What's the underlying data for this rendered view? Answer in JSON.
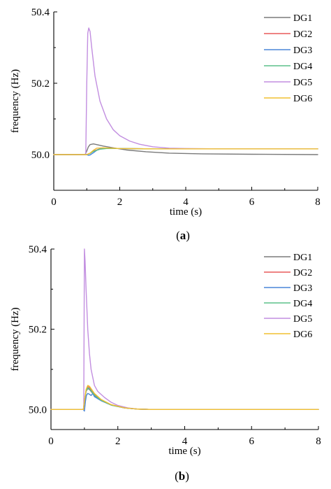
{
  "colors": {
    "DG1": "#7a7a7a",
    "DG2": "#e85a5a",
    "DG3": "#4a86d8",
    "DG4": "#5cc08a",
    "DG5": "#c28ee0",
    "DG6": "#f0c030"
  },
  "chart_data": [
    {
      "type": "line",
      "caption_letter": "a",
      "xlabel": "time (s)",
      "ylabel": "frequency (Hz)",
      "xlim": [
        0,
        8
      ],
      "ylim": [
        49.9,
        50.4
      ],
      "xticks": [
        0,
        2,
        4,
        6,
        8
      ],
      "yticks": [
        50.0,
        50.2,
        50.4
      ],
      "xtick_labels": [
        "0",
        "2",
        "4",
        "6",
        "8"
      ],
      "ytick_labels": [
        "50.0",
        "50.2",
        "50.4"
      ],
      "legend": "top-right",
      "grid": false,
      "series": [
        {
          "name": "DG1",
          "x": [
            0,
            0.95,
            1.0,
            1.05,
            1.1,
            1.2,
            1.3,
            1.5,
            1.8,
            2.2,
            2.8,
            3.5,
            4.5,
            6,
            8
          ],
          "y": [
            50.0,
            50.0,
            50.01,
            50.022,
            50.028,
            50.03,
            50.028,
            50.024,
            50.019,
            50.013,
            50.008,
            50.004,
            50.002,
            50.001,
            50.0
          ]
        },
        {
          "name": "DG2",
          "x": [
            0,
            0.95,
            1.0,
            1.1,
            1.2,
            1.4,
            1.6,
            2.0,
            3,
            8
          ],
          "y": [
            50.0,
            50.0,
            50.0,
            50.004,
            50.01,
            50.016,
            50.018,
            50.017,
            50.016,
            50.016
          ]
        },
        {
          "name": "DG3",
          "x": [
            0,
            0.95,
            1.0,
            1.05,
            1.1,
            1.2,
            1.3,
            1.4,
            1.6,
            2.0,
            3,
            8
          ],
          "y": [
            50.0,
            50.0,
            50.0,
            49.998,
            49.999,
            50.005,
            50.012,
            50.016,
            50.018,
            50.017,
            50.016,
            50.016
          ]
        },
        {
          "name": "DG4",
          "x": [
            0,
            0.95,
            1.0,
            1.1,
            1.2,
            1.4,
            1.6,
            2.0,
            3,
            8
          ],
          "y": [
            50.0,
            50.0,
            50.0,
            50.003,
            50.009,
            50.015,
            50.017,
            50.017,
            50.016,
            50.016
          ]
        },
        {
          "name": "DG5",
          "x": [
            0,
            0.97,
            1.0,
            1.03,
            1.06,
            1.1,
            1.15,
            1.25,
            1.4,
            1.6,
            1.8,
            2.0,
            2.3,
            2.6,
            3.0,
            3.5,
            4.0,
            5,
            6,
            8
          ],
          "y": [
            50.0,
            50.0,
            50.2,
            50.34,
            50.355,
            50.345,
            50.3,
            50.22,
            50.15,
            50.1,
            50.07,
            50.053,
            50.038,
            50.029,
            50.022,
            50.018,
            50.017,
            50.016,
            50.016,
            50.016
          ]
        },
        {
          "name": "DG6",
          "x": [
            0,
            0.95,
            1.0,
            1.1,
            1.2,
            1.3,
            1.5,
            2.0,
            3,
            8
          ],
          "y": [
            50.0,
            50.0,
            50.0,
            50.004,
            50.012,
            50.018,
            50.019,
            50.017,
            50.016,
            50.016
          ]
        }
      ]
    },
    {
      "type": "line",
      "caption_letter": "b",
      "xlabel": "time (s)",
      "ylabel": "frequency (Hz)",
      "xlim": [
        0,
        8
      ],
      "ylim": [
        49.95,
        50.4
      ],
      "xticks": [
        0,
        2,
        4,
        6,
        8
      ],
      "yticks": [
        50.0,
        50.2,
        50.4
      ],
      "xtick_labels": [
        "0",
        "2",
        "4",
        "6",
        "8"
      ],
      "ytick_labels": [
        "50.0",
        "50.2",
        "50.4"
      ],
      "legend": "top-right",
      "grid": false,
      "series": [
        {
          "name": "DG1",
          "x": [
            0,
            0.97,
            1.0,
            1.05,
            1.1,
            1.15,
            1.2,
            1.3,
            1.5,
            1.8,
            2.2,
            2.6,
            3.0,
            8
          ],
          "y": [
            50.0,
            50.0,
            50.02,
            50.045,
            50.052,
            50.05,
            50.045,
            50.035,
            50.022,
            50.011,
            50.004,
            50.001,
            50.0,
            50.0
          ]
        },
        {
          "name": "DG2",
          "x": [
            0,
            0.97,
            1.0,
            1.05,
            1.1,
            1.15,
            1.2,
            1.3,
            1.5,
            1.8,
            2.2,
            2.6,
            3.0,
            8
          ],
          "y": [
            50.0,
            50.0,
            50.02,
            50.048,
            50.057,
            50.055,
            50.05,
            50.038,
            50.024,
            50.012,
            50.004,
            50.001,
            50.0,
            50.0
          ]
        },
        {
          "name": "DG3",
          "x": [
            0,
            0.97,
            1.0,
            1.03,
            1.06,
            1.1,
            1.15,
            1.2,
            1.25,
            1.3,
            1.5,
            1.8,
            2.2,
            2.6,
            3.0,
            8
          ],
          "y": [
            50.0,
            50.0,
            49.996,
            50.02,
            50.035,
            50.04,
            50.038,
            50.035,
            50.04,
            50.032,
            50.022,
            50.011,
            50.004,
            50.001,
            50.0,
            50.0
          ]
        },
        {
          "name": "DG4",
          "x": [
            0,
            0.97,
            1.0,
            1.05,
            1.1,
            1.15,
            1.2,
            1.3,
            1.5,
            1.8,
            2.2,
            2.6,
            3.0,
            8
          ],
          "y": [
            50.0,
            50.0,
            50.02,
            50.046,
            50.054,
            50.052,
            50.047,
            50.036,
            50.023,
            50.011,
            50.004,
            50.001,
            50.0,
            50.0
          ]
        },
        {
          "name": "DG5",
          "x": [
            0,
            0.98,
            1.0,
            1.02,
            1.05,
            1.1,
            1.15,
            1.2,
            1.3,
            1.4,
            1.6,
            1.8,
            2.0,
            2.3,
            2.6,
            3.0,
            8
          ],
          "y": [
            50.0,
            50.0,
            50.4,
            50.37,
            50.3,
            50.2,
            50.14,
            50.1,
            50.06,
            50.045,
            50.03,
            50.018,
            50.01,
            50.004,
            50.001,
            50.0,
            50.0
          ]
        },
        {
          "name": "DG6",
          "x": [
            0,
            0.97,
            1.0,
            1.05,
            1.1,
            1.15,
            1.2,
            1.3,
            1.5,
            1.8,
            2.2,
            2.6,
            3.0,
            8
          ],
          "y": [
            50.0,
            50.0,
            50.02,
            50.05,
            50.06,
            50.058,
            50.052,
            50.04,
            50.025,
            50.012,
            50.004,
            50.001,
            50.0,
            50.0
          ]
        }
      ]
    }
  ]
}
